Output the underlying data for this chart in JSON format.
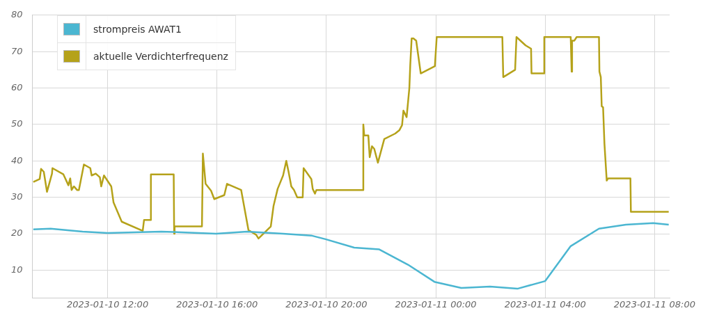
{
  "chart_data": {
    "type": "line",
    "xlim": [
      "2023-01-10T09:15",
      "2023-01-11T08:33"
    ],
    "ylim": [
      2.4,
      80
    ],
    "xticks": [
      {
        "value": "2023-01-10T12:00",
        "label": "2023-01-10 12:00"
      },
      {
        "value": "2023-01-10T16:00",
        "label": "2023-01-10 16:00"
      },
      {
        "value": "2023-01-10T20:00",
        "label": "2023-01-10 20:00"
      },
      {
        "value": "2023-01-11T00:00",
        "label": "2023-01-11 00:00"
      },
      {
        "value": "2023-01-11T04:00",
        "label": "2023-01-11 04:00"
      },
      {
        "value": "2023-01-11T08:00",
        "label": "2023-01-11 08:00"
      }
    ],
    "yticks": [
      10,
      20,
      30,
      40,
      50,
      60,
      70,
      80
    ],
    "grid": true,
    "legend": "top left",
    "marker": "none",
    "line_style": "solid",
    "series": [
      {
        "name": "strompreis AWAT1",
        "color": "#4bb6d1",
        "x": [
          "2023-01-10T09:17",
          "2023-01-10T09:55",
          "2023-01-10T11:05",
          "2023-01-10T12:00",
          "2023-01-10T13:58",
          "2023-01-10T15:58",
          "2023-01-10T17:06",
          "2023-01-10T18:25",
          "2023-01-10T19:27",
          "2023-01-10T19:58",
          "2023-01-10T21:01",
          "2023-01-10T21:56",
          "2023-01-10T22:59",
          "2023-01-10T23:57",
          "2023-01-11T00:56",
          "2023-01-11T01:59",
          "2023-01-11T02:59",
          "2023-01-11T04:00",
          "2023-01-11T04:56",
          "2023-01-11T05:58",
          "2023-01-11T06:57",
          "2023-01-11T07:57",
          "2023-01-11T08:31"
        ],
        "values": [
          21.2,
          21.4,
          20.6,
          20.2,
          20.6,
          20,
          20.6,
          20,
          19.5,
          18.5,
          16.2,
          15.7,
          11.5,
          6.8,
          5.1,
          5.5,
          4.9,
          7,
          16.6,
          21.4,
          22.5,
          22.9,
          22.5
        ]
      },
      {
        "name": "aktuelle Verdichterfrequenz",
        "color": "#b5a21a",
        "x": [
          "2023-01-10T09:17",
          "2023-01-10T09:31",
          "2023-01-10T09:34",
          "2023-01-10T09:40",
          "2023-01-10T09:47",
          "2023-01-10T09:58",
          "2023-01-10T09:59",
          "2023-01-10T10:23",
          "2023-01-10T10:34",
          "2023-01-10T10:38",
          "2023-01-10T10:41",
          "2023-01-10T10:46",
          "2023-01-10T10:53",
          "2023-01-10T10:57",
          "2023-01-10T11:08",
          "2023-01-10T11:22",
          "2023-01-10T11:25",
          "2023-01-10T11:34",
          "2023-01-10T11:43",
          "2023-01-10T11:46",
          "2023-01-10T11:52",
          "2023-01-10T12:08",
          "2023-01-10T12:13",
          "2023-01-10T12:31",
          "2023-01-10T13:17",
          "2023-01-10T13:20",
          "2023-01-10T13:34",
          "2023-01-10T13:35",
          "2023-01-10T14:25",
          "2023-01-10T14:26",
          "2023-01-10T14:27",
          "2023-01-10T15:27",
          "2023-01-10T15:29",
          "2023-01-10T15:35",
          "2023-01-10T15:47",
          "2023-01-10T15:54",
          "2023-01-10T16:16",
          "2023-01-10T16:22",
          "2023-01-10T16:53",
          "2023-01-10T17:09",
          "2023-01-10T17:26",
          "2023-01-10T17:31",
          "2023-01-10T17:58",
          "2023-01-10T18:04",
          "2023-01-10T18:13",
          "2023-01-10T18:25",
          "2023-01-10T18:32",
          "2023-01-10T18:37",
          "2023-01-10T18:43",
          "2023-01-10T18:49",
          "2023-01-10T18:56",
          "2023-01-10T19:08",
          "2023-01-10T19:10",
          "2023-01-10T19:27",
          "2023-01-10T19:30",
          "2023-01-10T19:35",
          "2023-01-10T19:38",
          "2023-01-10T21:20",
          "2023-01-10T21:21",
          "2023-01-10T21:23",
          "2023-01-10T21:32",
          "2023-01-10T21:35",
          "2023-01-10T21:40",
          "2023-01-10T21:45",
          "2023-01-10T21:53",
          "2023-01-10T22:07",
          "2023-01-10T22:31",
          "2023-01-10T22:40",
          "2023-01-10T22:46",
          "2023-01-10T22:49",
          "2023-01-10T22:56",
          "2023-01-10T23:02",
          "2023-01-10T23:04",
          "2023-01-10T23:07",
          "2023-01-10T23:11",
          "2023-01-10T23:17",
          "2023-01-10T23:27",
          "2023-01-10T23:58",
          "2023-01-11T00:02",
          "2023-01-11T02:26",
          "2023-01-11T02:28",
          "2023-01-11T02:54",
          "2023-01-11T02:57",
          "2023-01-11T03:17",
          "2023-01-11T03:29",
          "2023-01-11T03:30",
          "2023-01-11T03:57",
          "2023-01-11T03:58",
          "2023-01-11T04:56",
          "2023-01-11T04:58",
          "2023-01-11T04:59",
          "2023-01-11T05:04",
          "2023-01-11T05:09",
          "2023-01-11T05:58",
          "2023-01-11T05:59",
          "2023-01-11T06:02",
          "2023-01-11T06:04",
          "2023-01-11T06:07",
          "2023-01-11T06:10",
          "2023-01-11T06:15",
          "2023-01-11T06:18",
          "2023-01-11T07:07",
          "2023-01-11T07:08",
          "2023-01-11T08:31"
        ],
        "values": [
          34.2,
          35,
          37.8,
          37,
          31.5,
          36.5,
          38,
          36.3,
          33.3,
          35.2,
          32,
          33,
          32,
          32,
          39,
          38,
          36,
          36.5,
          35.5,
          33,
          36,
          33,
          28.6,
          23.3,
          20.8,
          23.8,
          23.8,
          36.3,
          36.3,
          20,
          22,
          22,
          42,
          33.7,
          31.8,
          29.5,
          30.6,
          33.7,
          32,
          21,
          19.7,
          18.7,
          22,
          27.6,
          32.3,
          36,
          40,
          37,
          33,
          32,
          30,
          30,
          38,
          35,
          32.3,
          31,
          32,
          32,
          50,
          47,
          47,
          41,
          44,
          43.3,
          39.5,
          46,
          47.5,
          48.4,
          49.8,
          53.8,
          52,
          60,
          66.4,
          73.6,
          73.6,
          73,
          64,
          66,
          74,
          74,
          63,
          65,
          74,
          71.7,
          70.8,
          64,
          64,
          74,
          74,
          64.5,
          73,
          73,
          74,
          74,
          64.5,
          63,
          55,
          54.7,
          44.7,
          34.6,
          35.2,
          35.2,
          26,
          26
        ]
      }
    ]
  }
}
